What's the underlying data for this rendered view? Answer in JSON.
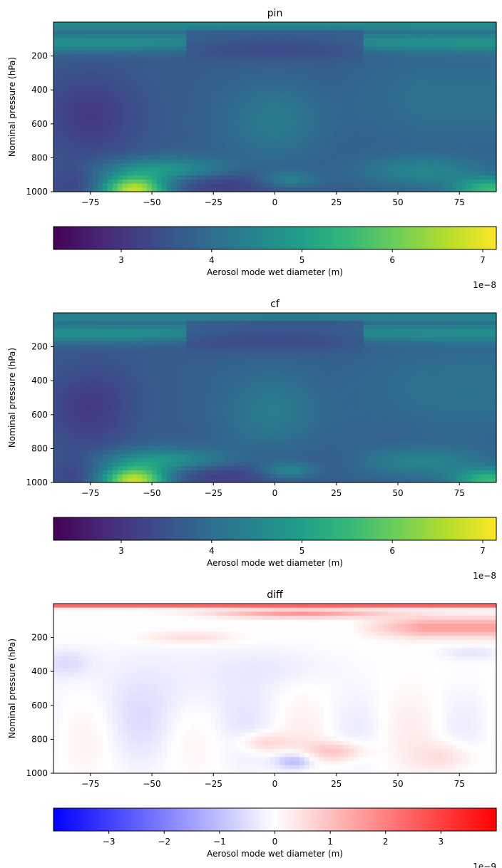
{
  "chart_data": [
    {
      "type": "heatmap",
      "title": "pin",
      "xlabel": "",
      "ylabel": "Nominal pressure (hPa)",
      "xlim": [
        -90,
        90
      ],
      "ylim": [
        1000,
        0
      ],
      "x_ticks": [
        -75,
        -50,
        -25,
        0,
        25,
        50,
        75
      ],
      "x_tick_labels": [
        "−75",
        "−50",
        "−25",
        "0",
        "25",
        "50",
        "75"
      ],
      "y_ticks": [
        200,
        400,
        600,
        800,
        1000
      ],
      "y_tick_labels": [
        "200",
        "400",
        "600",
        "800",
        "1000"
      ],
      "colormap": "viridis",
      "colorbar": {
        "label": "Aerosol mode wet diameter (m)",
        "range": [
          2.25e-08,
          7.15e-08
        ],
        "ticks": [
          3e-08,
          4e-08,
          5e-08,
          6e-08,
          7e-08
        ],
        "tick_labels": [
          "3",
          "4",
          "5",
          "6",
          "7"
        ],
        "offset_text": "1e−8",
        "orientation": "horizontal"
      }
    },
    {
      "type": "heatmap",
      "title": "cf",
      "xlabel": "",
      "ylabel": "Nominal pressure (hPa)",
      "xlim": [
        -90,
        90
      ],
      "ylim": [
        1000,
        0
      ],
      "x_ticks": [
        -75,
        -50,
        -25,
        0,
        25,
        50,
        75
      ],
      "x_tick_labels": [
        "−75",
        "−50",
        "−25",
        "0",
        "25",
        "50",
        "75"
      ],
      "y_ticks": [
        200,
        400,
        600,
        800,
        1000
      ],
      "y_tick_labels": [
        "200",
        "400",
        "600",
        "800",
        "1000"
      ],
      "colormap": "viridis",
      "colorbar": {
        "label": "Aerosol mode wet diameter (m)",
        "range": [
          2.25e-08,
          7.15e-08
        ],
        "ticks": [
          3e-08,
          4e-08,
          5e-08,
          6e-08,
          7e-08
        ],
        "tick_labels": [
          "3",
          "4",
          "5",
          "6",
          "7"
        ],
        "offset_text": "1e−8",
        "orientation": "horizontal"
      }
    },
    {
      "type": "heatmap",
      "title": "diff",
      "xlabel": "",
      "ylabel": "Nominal pressure (hPa)",
      "xlim": [
        -90,
        90
      ],
      "ylim": [
        1000,
        0
      ],
      "x_ticks": [
        -75,
        -50,
        -25,
        0,
        25,
        50,
        75
      ],
      "x_tick_labels": [
        "−75",
        "−50",
        "−25",
        "0",
        "25",
        "50",
        "75"
      ],
      "y_ticks": [
        200,
        400,
        600,
        800,
        1000
      ],
      "y_tick_labels": [
        "200",
        "400",
        "600",
        "800",
        "1000"
      ],
      "colormap": "bwr",
      "colorbar": {
        "label": "Aerosol mode wet diameter (m)",
        "range": [
          -4e-09,
          4e-09
        ],
        "ticks": [
          -3e-09,
          -2e-09,
          -1e-09,
          0,
          1e-09,
          2e-09,
          3e-09
        ],
        "tick_labels": [
          "−3",
          "−2",
          "−1",
          "0",
          "1",
          "2",
          "3"
        ],
        "offset_text": "1e−9",
        "orientation": "horizontal"
      }
    }
  ],
  "colors": {
    "viridis": [
      "#440154",
      "#482878",
      "#3e4989",
      "#31688e",
      "#26828e",
      "#1f9e89",
      "#35b779",
      "#6ece58",
      "#b5de2b",
      "#fde725"
    ],
    "bwr": [
      "#0000ff",
      "#ffffff",
      "#ff0000"
    ]
  }
}
